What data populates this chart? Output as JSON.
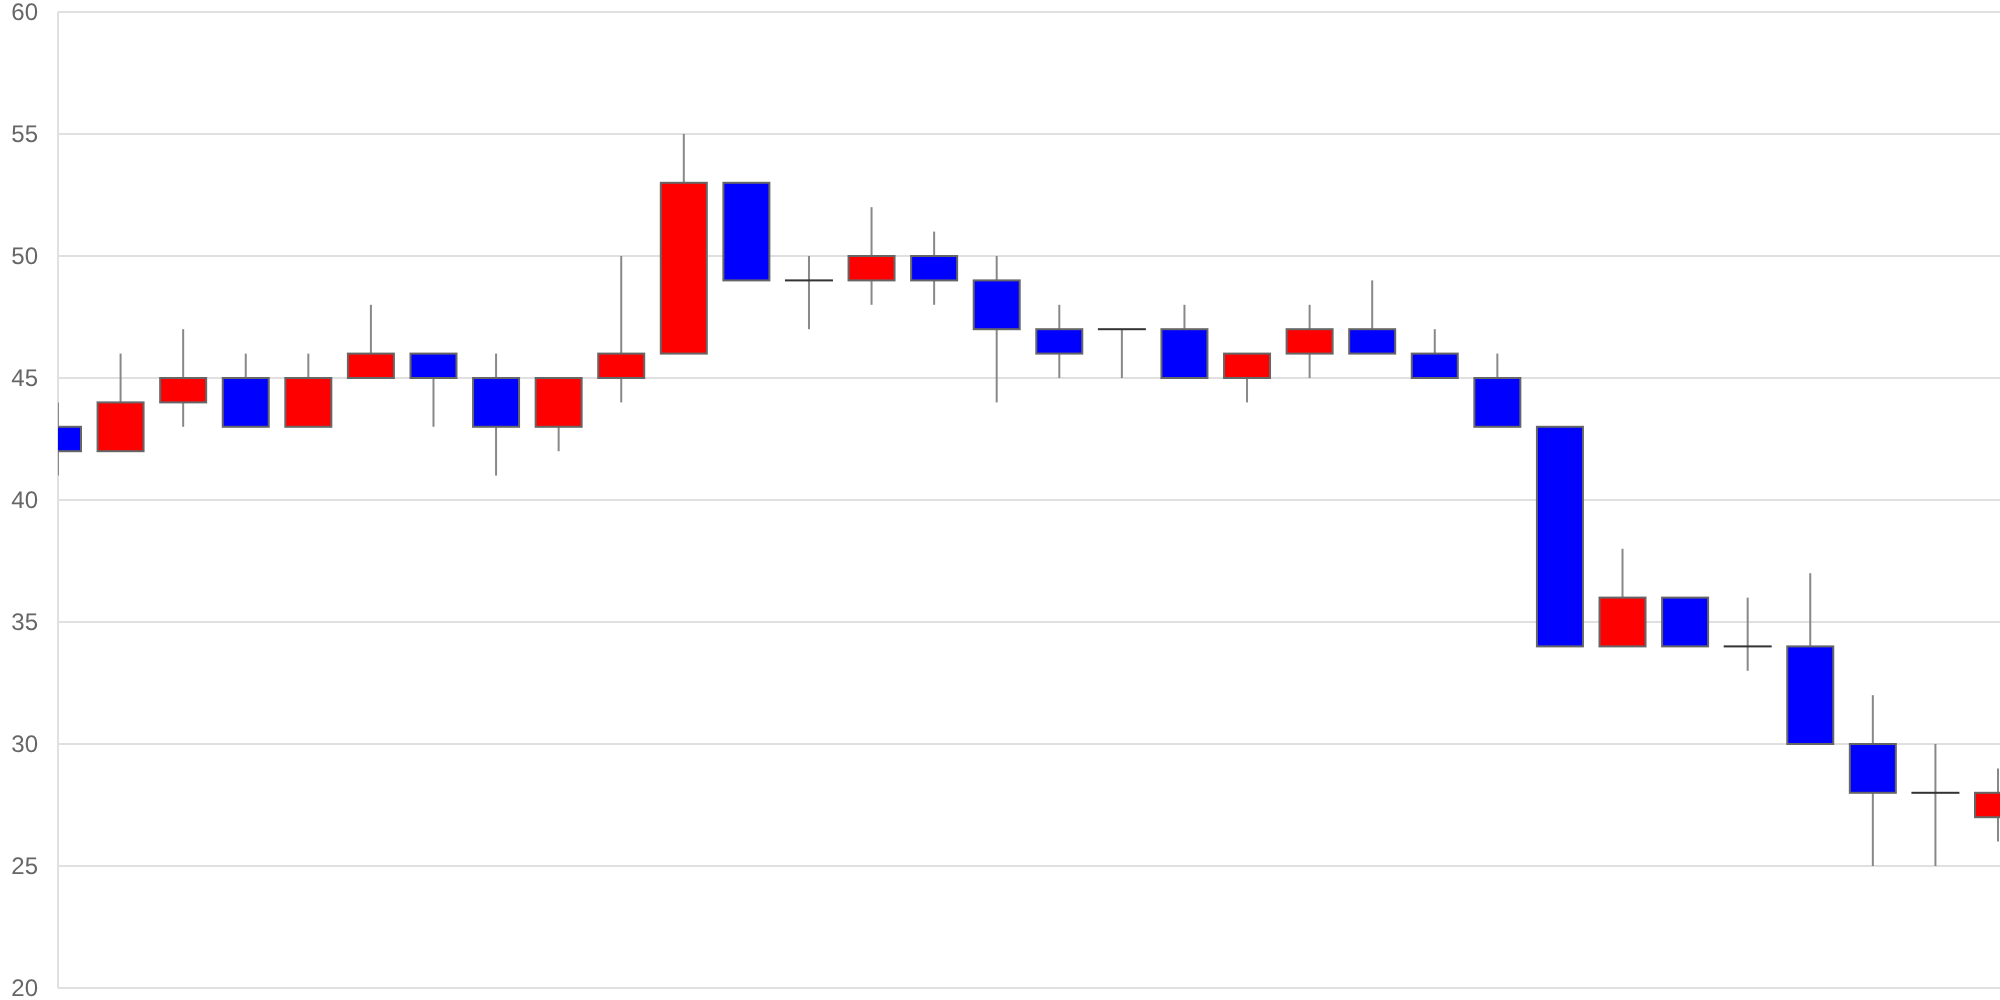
{
  "chart_data": {
    "type": "candlestick",
    "categories": [
      null,
      null,
      null,
      null,
      null,
      null,
      null,
      null,
      null,
      null,
      null,
      null,
      null,
      null,
      null,
      null,
      null,
      null,
      null,
      null,
      null,
      null,
      null,
      null,
      null,
      null,
      null,
      null,
      null,
      null,
      null,
      null
    ],
    "ohlc": [
      [
        43,
        44,
        41,
        42
      ],
      [
        42,
        46,
        42,
        44
      ],
      [
        44,
        47,
        43,
        45
      ],
      [
        45,
        46,
        43,
        43
      ],
      [
        43,
        46,
        43,
        45
      ],
      [
        45,
        48,
        45,
        46
      ],
      [
        46,
        46,
        43,
        45
      ],
      [
        45,
        46,
        41,
        43
      ],
      [
        43,
        45,
        42,
        45
      ],
      [
        45,
        50,
        44,
        46
      ],
      [
        46,
        55,
        46,
        53
      ],
      [
        53,
        53,
        49,
        49
      ],
      [
        49,
        50,
        47,
        49
      ],
      [
        49,
        52,
        48,
        50
      ],
      [
        50,
        51,
        48,
        49
      ],
      [
        49,
        50,
        44,
        47
      ],
      [
        47,
        48,
        45,
        46
      ],
      [
        47,
        47,
        45,
        47
      ],
      [
        47,
        48,
        45,
        45
      ],
      [
        45,
        46,
        44,
        46
      ],
      [
        46,
        48,
        45,
        47
      ],
      [
        47,
        49,
        46,
        46
      ],
      [
        46,
        47,
        45,
        45
      ],
      [
        45,
        46,
        43,
        43
      ],
      [
        43,
        43,
        34,
        34
      ],
      [
        34,
        38,
        34,
        36
      ],
      [
        36,
        36,
        34,
        34
      ],
      [
        34,
        36,
        33,
        34
      ],
      [
        34,
        37,
        30,
        30
      ],
      [
        30,
        32,
        25,
        28
      ],
      [
        28,
        30,
        25,
        28
      ],
      [
        27,
        29,
        26,
        28
      ]
    ],
    "colors": [
      "#0000ff",
      "#ff0000",
      "#ff0000",
      "#0000ff",
      "#ff0000",
      "#ff0000",
      "#0000ff",
      "#0000ff",
      "#ff0000",
      "#ff0000",
      "#ff0000",
      "#0000ff",
      "#333333",
      "#ff0000",
      "#0000ff",
      "#0000ff",
      "#0000ff",
      "#333333",
      "#0000ff",
      "#ff0000",
      "#ff0000",
      "#0000ff",
      "#0000ff",
      "#0000ff",
      "#0000ff",
      "#ff0000",
      "#0000ff",
      "#333333",
      "#0000ff",
      "#0000ff",
      "#333333",
      "#ff0000"
    ],
    "ylim": [
      20,
      60
    ],
    "yticks": [
      20,
      25,
      30,
      35,
      40,
      45,
      50,
      55,
      60
    ],
    "grid": "y"
  }
}
